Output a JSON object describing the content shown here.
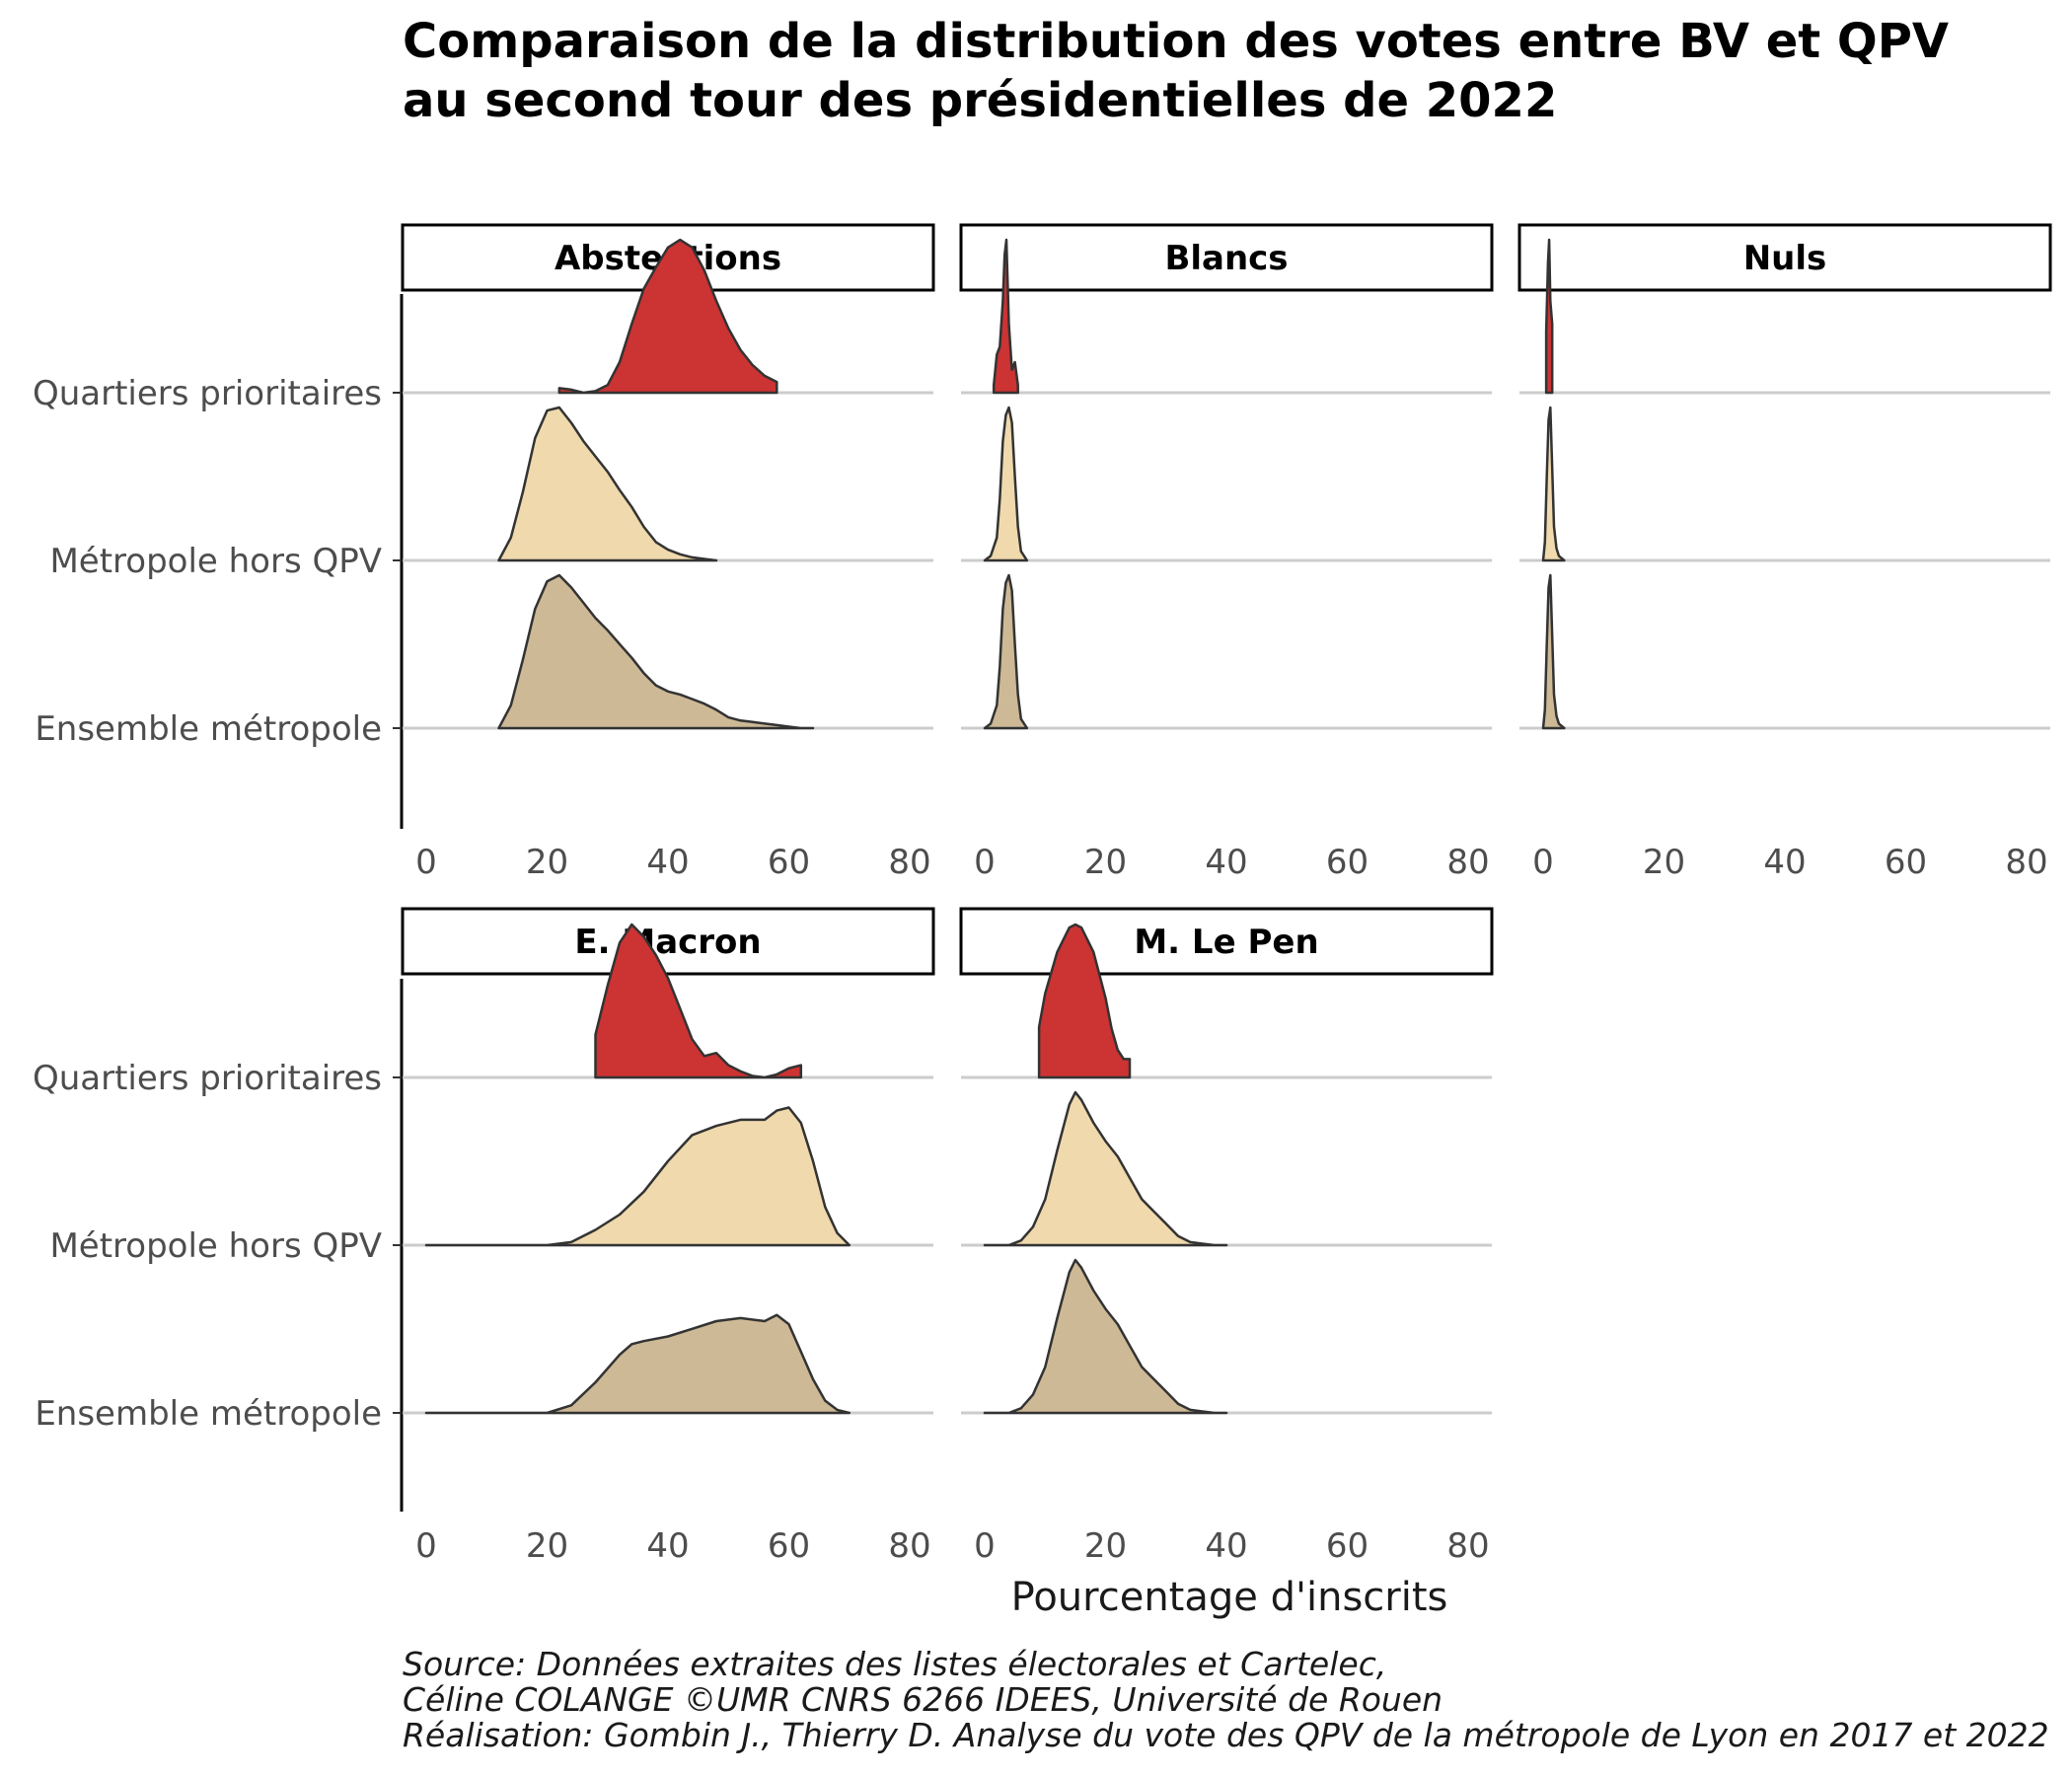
{
  "chart_data": {
    "type": "ridgeline",
    "title_line1": "Comparaison de la distribution des votes entre BV et QPV",
    "title_line2": "au second tour des présidentielles de 2022",
    "xlabel": "Pourcentage d'inscrits",
    "xlim": [
      0,
      80
    ],
    "x_ticks": [
      "0",
      "20",
      "40",
      "60",
      "80"
    ],
    "categories": [
      "Quartiers prioritaires",
      "Métropole hors QPV",
      "Ensemble métropole"
    ],
    "colors": {
      "Quartiers prioritaires": "#cc3333",
      "Métropole hors QPV": "#efd9ad",
      "Ensemble métropole": "#cdb996"
    },
    "grid": "horizontal baselines only",
    "facets": [
      {
        "name": "Abstentions",
        "series": [
          {
            "group": "Quartiers prioritaires",
            "x": [
              22,
              24,
              26,
              28,
              30,
              32,
              34,
              36,
              38,
              40,
              42,
              44,
              46,
              48,
              50,
              52,
              54,
              56,
              58
            ],
            "density": [
              0.03,
              0.02,
              0.0,
              0.01,
              0.05,
              0.2,
              0.45,
              0.68,
              0.82,
              0.95,
              1.0,
              0.95,
              0.8,
              0.6,
              0.42,
              0.28,
              0.18,
              0.11,
              0.07
            ]
          },
          {
            "group": "Métropole hors QPV",
            "x": [
              12,
              14,
              16,
              18,
              20,
              22,
              24,
              26,
              28,
              30,
              32,
              34,
              36,
              38,
              40,
              42,
              44,
              46,
              48
            ],
            "density": [
              0.0,
              0.15,
              0.45,
              0.8,
              0.98,
              1.0,
              0.9,
              0.78,
              0.68,
              0.58,
              0.46,
              0.35,
              0.22,
              0.12,
              0.07,
              0.04,
              0.02,
              0.01,
              0.0
            ]
          },
          {
            "group": "Ensemble métropole",
            "x": [
              12,
              14,
              16,
              18,
              20,
              22,
              24,
              26,
              28,
              30,
              32,
              34,
              36,
              38,
              40,
              42,
              44,
              46,
              48,
              50,
              52,
              54,
              56,
              58,
              60,
              62,
              64
            ],
            "density": [
              0.0,
              0.15,
              0.45,
              0.78,
              0.96,
              1.0,
              0.92,
              0.82,
              0.72,
              0.64,
              0.55,
              0.46,
              0.36,
              0.28,
              0.24,
              0.22,
              0.19,
              0.16,
              0.12,
              0.07,
              0.05,
              0.04,
              0.03,
              0.02,
              0.01,
              0.0,
              0.0
            ]
          }
        ]
      },
      {
        "name": "Blancs",
        "series": [
          {
            "group": "Quartiers prioritaires",
            "x": [
              1.5,
              2,
              2.5,
              3,
              3.3,
              3.6,
              4,
              4.5,
              5,
              5.5
            ],
            "density": [
              0.05,
              0.25,
              0.3,
              0.6,
              0.9,
              1.0,
              0.45,
              0.15,
              0.2,
              0.05
            ]
          },
          {
            "group": "Métropole hors QPV",
            "x": [
              0,
              1,
              2,
              2.5,
              3,
              3.5,
              4,
              4.5,
              5,
              5.5,
              6,
              7
            ],
            "density": [
              0.0,
              0.03,
              0.15,
              0.4,
              0.78,
              0.95,
              1.0,
              0.9,
              0.55,
              0.22,
              0.06,
              0.0
            ]
          },
          {
            "group": "Ensemble métropole",
            "x": [
              0,
              1,
              2,
              2.5,
              3,
              3.5,
              4,
              4.5,
              5,
              5.5,
              6,
              7
            ],
            "density": [
              0.0,
              0.03,
              0.15,
              0.4,
              0.78,
              0.95,
              1.0,
              0.9,
              0.55,
              0.22,
              0.06,
              0.0
            ]
          }
        ]
      },
      {
        "name": "Nuls",
        "series": [
          {
            "group": "Quartiers prioritaires",
            "x": [
              0.5,
              0.8,
              1.0,
              1.2,
              1.5
            ],
            "density": [
              0.4,
              0.85,
              1.0,
              0.6,
              0.45
            ]
          },
          {
            "group": "Métropole hors QPV",
            "x": [
              0,
              0.3,
              0.6,
              0.9,
              1.2,
              1.5,
              1.8,
              2.2,
              2.6,
              3.5
            ],
            "density": [
              0.0,
              0.12,
              0.55,
              0.92,
              1.0,
              0.6,
              0.22,
              0.08,
              0.03,
              0.0
            ]
          },
          {
            "group": "Ensemble métropole",
            "x": [
              0,
              0.3,
              0.6,
              0.9,
              1.2,
              1.5,
              1.8,
              2.2,
              2.6,
              3.5
            ],
            "density": [
              0.0,
              0.12,
              0.55,
              0.92,
              1.0,
              0.6,
              0.22,
              0.08,
              0.03,
              0.0
            ]
          }
        ]
      },
      {
        "name": "E. Macron",
        "series": [
          {
            "group": "Quartiers prioritaires",
            "x": [
              28,
              30,
              32,
              34,
              36,
              38,
              40,
              42,
              44,
              46,
              48,
              50,
              52,
              54,
              56,
              58,
              60,
              62
            ],
            "density": [
              0.28,
              0.6,
              0.88,
              1.0,
              0.92,
              0.8,
              0.65,
              0.45,
              0.25,
              0.14,
              0.16,
              0.08,
              0.04,
              0.01,
              0.0,
              0.02,
              0.06,
              0.08
            ]
          },
          {
            "group": "Métropole hors QPV",
            "x": [
              0,
              10,
              20,
              24,
              28,
              32,
              36,
              40,
              44,
              48,
              52,
              56,
              58,
              60,
              62,
              64,
              66,
              68,
              70
            ],
            "density": [
              0.0,
              0.0,
              0.0,
              0.02,
              0.1,
              0.2,
              0.35,
              0.55,
              0.72,
              0.78,
              0.82,
              0.82,
              0.88,
              0.9,
              0.8,
              0.55,
              0.25,
              0.08,
              0.0
            ]
          },
          {
            "group": "Ensemble métropole",
            "x": [
              0,
              10,
              20,
              24,
              28,
              32,
              34,
              36,
              40,
              44,
              48,
              52,
              56,
              58,
              60,
              62,
              64,
              66,
              68,
              70
            ],
            "density": [
              0.0,
              0.0,
              0.0,
              0.05,
              0.2,
              0.38,
              0.45,
              0.47,
              0.5,
              0.55,
              0.6,
              0.62,
              0.6,
              0.64,
              0.58,
              0.4,
              0.22,
              0.08,
              0.02,
              0.0
            ]
          }
        ]
      },
      {
        "name": "M. Le Pen",
        "series": [
          {
            "group": "Quartiers prioritaires",
            "x": [
              9,
              10,
              12,
              14,
              15,
              16,
              18,
              20,
              21,
              22,
              23,
              24
            ],
            "density": [
              0.33,
              0.55,
              0.82,
              0.98,
              1.0,
              0.98,
              0.82,
              0.52,
              0.32,
              0.18,
              0.12,
              0.12
            ]
          },
          {
            "group": "Métropole hors QPV",
            "x": [
              0,
              2,
              4,
              6,
              8,
              10,
              12,
              14,
              15,
              16,
              18,
              20,
              22,
              24,
              26,
              28,
              30,
              32,
              34,
              36,
              38,
              40
            ],
            "density": [
              0.0,
              0.0,
              0.0,
              0.03,
              0.12,
              0.3,
              0.62,
              0.92,
              1.0,
              0.95,
              0.8,
              0.68,
              0.58,
              0.44,
              0.3,
              0.22,
              0.14,
              0.06,
              0.02,
              0.01,
              0.0,
              0.0
            ]
          },
          {
            "group": "Ensemble métropole",
            "x": [
              0,
              2,
              4,
              6,
              8,
              10,
              12,
              14,
              15,
              16,
              18,
              20,
              22,
              24,
              26,
              28,
              30,
              32,
              34,
              36,
              38,
              40
            ],
            "density": [
              0.0,
              0.0,
              0.0,
              0.03,
              0.12,
              0.3,
              0.62,
              0.92,
              1.0,
              0.95,
              0.8,
              0.68,
              0.58,
              0.44,
              0.3,
              0.22,
              0.14,
              0.06,
              0.02,
              0.01,
              0.0,
              0.0
            ]
          }
        ]
      }
    ],
    "caption": [
      "Source: Données extraites des listes électorales et Cartelec,",
      "Céline COLANGE ©UMR CNRS 6266 IDEES, Université de Rouen",
      "Réalisation: Gombin J., Thierry D. Analyse du vote des QPV de la métropole de Lyon en 2017 et 2022"
    ]
  }
}
